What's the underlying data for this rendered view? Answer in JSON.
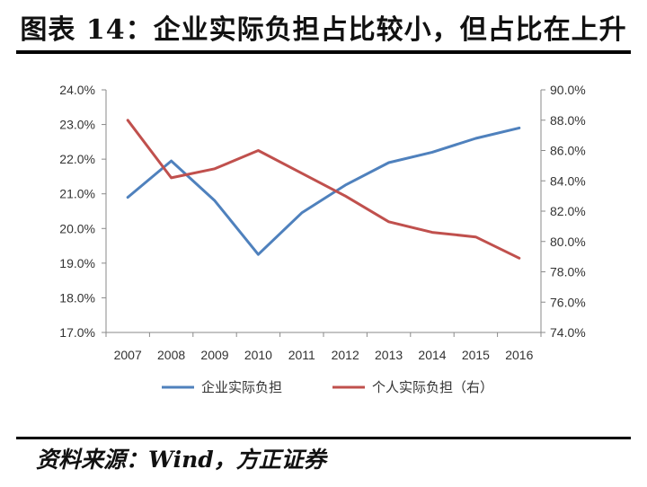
{
  "title": "图表 14：企业实际负担占比较小，但占比在上升",
  "source": "资料来源：Wind，方正证券",
  "chart_data": {
    "type": "line",
    "x": [
      "2007",
      "2008",
      "2009",
      "2010",
      "2011",
      "2012",
      "2013",
      "2014",
      "2015",
      "2016"
    ],
    "y_left": {
      "ticks": [
        "17.0%",
        "18.0%",
        "19.0%",
        "20.0%",
        "21.0%",
        "22.0%",
        "23.0%",
        "24.0%"
      ],
      "range": [
        17,
        24
      ]
    },
    "y_right": {
      "ticks": [
        "74.0%",
        "76.0%",
        "78.0%",
        "80.0%",
        "82.0%",
        "84.0%",
        "86.0%",
        "88.0%",
        "90.0%"
      ],
      "range": [
        74,
        90
      ]
    },
    "series": [
      {
        "name": "企业实际负担",
        "axis": "left",
        "color": "#4f81bd",
        "values": [
          20.9,
          21.95,
          20.8,
          19.25,
          20.45,
          21.25,
          21.9,
          22.2,
          22.6,
          22.9
        ]
      },
      {
        "name": "个人实际负担（右）",
        "axis": "right",
        "color": "#c0504d",
        "values": [
          88.0,
          84.2,
          84.8,
          86.0,
          84.5,
          83.0,
          81.3,
          80.6,
          80.3,
          78.9
        ]
      }
    ],
    "grid": false,
    "legend": "bottom"
  }
}
